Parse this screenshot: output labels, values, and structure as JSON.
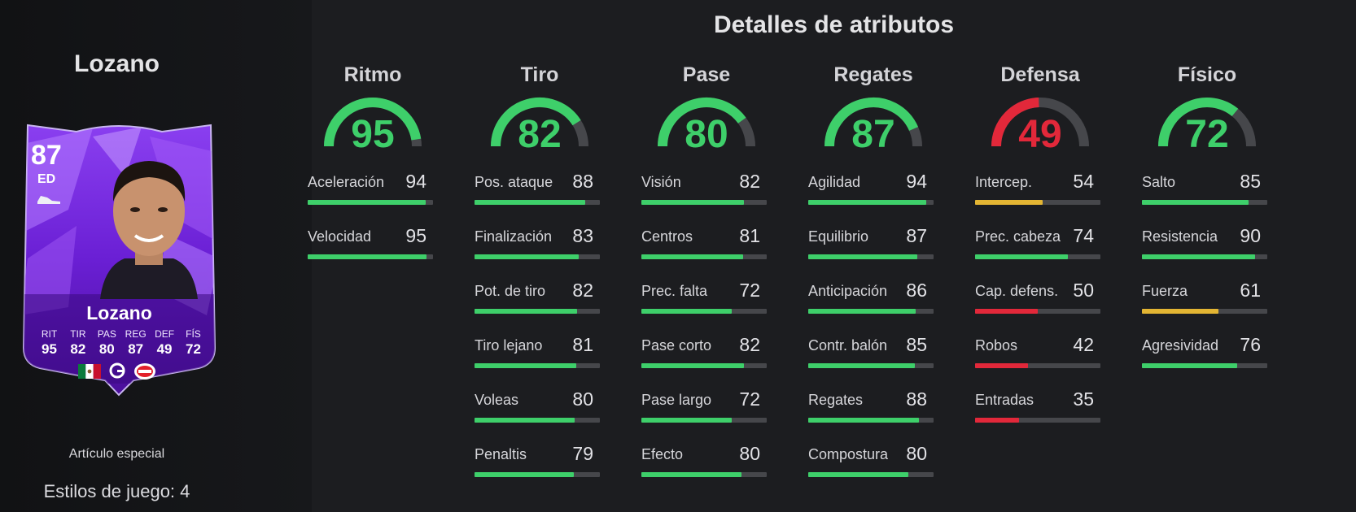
{
  "left_panel": {
    "player_name": "Lozano",
    "card": {
      "rating": "87",
      "position": "ED",
      "name": "Lozano",
      "stats": [
        {
          "label": "RIT",
          "value": "95"
        },
        {
          "label": "TIR",
          "value": "82"
        },
        {
          "label": "PAS",
          "value": "80"
        },
        {
          "label": "REG",
          "value": "87"
        },
        {
          "label": "DEF",
          "value": "49"
        },
        {
          "label": "FÍS",
          "value": "72"
        }
      ],
      "badges": [
        "mexico-flag-icon",
        "eredivisie-logo-icon",
        "psv-club-icon"
      ]
    },
    "special_label": "Artículo especial",
    "playstyles_label": "Estilos de juego: 4"
  },
  "main": {
    "title": "Detalles de atributos",
    "colors": {
      "green": "#3ecf6a",
      "red": "#e2283a",
      "yellow": "#e3b533",
      "track": "#46474b"
    },
    "categories": [
      {
        "name": "Ritmo",
        "value": 95,
        "value_text": "95",
        "tone": "green",
        "stats": [
          {
            "label": "Aceleración",
            "value": 94,
            "value_text": "94",
            "tone": "green"
          },
          {
            "label": "Velocidad",
            "value": 95,
            "value_text": "95",
            "tone": "green"
          }
        ]
      },
      {
        "name": "Tiro",
        "value": 82,
        "value_text": "82",
        "tone": "green",
        "stats": [
          {
            "label": "Pos. ataque",
            "value": 88,
            "value_text": "88",
            "tone": "green"
          },
          {
            "label": "Finalización",
            "value": 83,
            "value_text": "83",
            "tone": "green"
          },
          {
            "label": "Pot. de tiro",
            "value": 82,
            "value_text": "82",
            "tone": "green"
          },
          {
            "label": "Tiro lejano",
            "value": 81,
            "value_text": "81",
            "tone": "green"
          },
          {
            "label": "Voleas",
            "value": 80,
            "value_text": "80",
            "tone": "green"
          },
          {
            "label": "Penaltis",
            "value": 79,
            "value_text": "79",
            "tone": "green"
          }
        ]
      },
      {
        "name": "Pase",
        "value": 80,
        "value_text": "80",
        "tone": "green",
        "stats": [
          {
            "label": "Visión",
            "value": 82,
            "value_text": "82",
            "tone": "green"
          },
          {
            "label": "Centros",
            "value": 81,
            "value_text": "81",
            "tone": "green"
          },
          {
            "label": "Prec. falta",
            "value": 72,
            "value_text": "72",
            "tone": "green"
          },
          {
            "label": "Pase corto",
            "value": 82,
            "value_text": "82",
            "tone": "green"
          },
          {
            "label": "Pase largo",
            "value": 72,
            "value_text": "72",
            "tone": "green"
          },
          {
            "label": "Efecto",
            "value": 80,
            "value_text": "80",
            "tone": "green"
          }
        ]
      },
      {
        "name": "Regates",
        "value": 87,
        "value_text": "87",
        "tone": "green",
        "stats": [
          {
            "label": "Agilidad",
            "value": 94,
            "value_text": "94",
            "tone": "green"
          },
          {
            "label": "Equilibrio",
            "value": 87,
            "value_text": "87",
            "tone": "green"
          },
          {
            "label": "Anticipación",
            "value": 86,
            "value_text": "86",
            "tone": "green"
          },
          {
            "label": "Contr. balón",
            "value": 85,
            "value_text": "85",
            "tone": "green"
          },
          {
            "label": "Regates",
            "value": 88,
            "value_text": "88",
            "tone": "green"
          },
          {
            "label": "Compostura",
            "value": 80,
            "value_text": "80",
            "tone": "green"
          }
        ]
      },
      {
        "name": "Defensa",
        "value": 49,
        "value_text": "49",
        "tone": "red",
        "stats": [
          {
            "label": "Intercep.",
            "value": 54,
            "value_text": "54",
            "tone": "yellow"
          },
          {
            "label": "Prec. cabeza",
            "value": 74,
            "value_text": "74",
            "tone": "green"
          },
          {
            "label": "Cap. defens.",
            "value": 50,
            "value_text": "50",
            "tone": "red"
          },
          {
            "label": "Robos",
            "value": 42,
            "value_text": "42",
            "tone": "red"
          },
          {
            "label": "Entradas",
            "value": 35,
            "value_text": "35",
            "tone": "red"
          }
        ]
      },
      {
        "name": "Físico",
        "value": 72,
        "value_text": "72",
        "tone": "green",
        "stats": [
          {
            "label": "Salto",
            "value": 85,
            "value_text": "85",
            "tone": "green"
          },
          {
            "label": "Resistencia",
            "value": 90,
            "value_text": "90",
            "tone": "green"
          },
          {
            "label": "Fuerza",
            "value": 61,
            "value_text": "61",
            "tone": "yellow"
          },
          {
            "label": "Agresividad",
            "value": 76,
            "value_text": "76",
            "tone": "green"
          }
        ]
      }
    ]
  }
}
